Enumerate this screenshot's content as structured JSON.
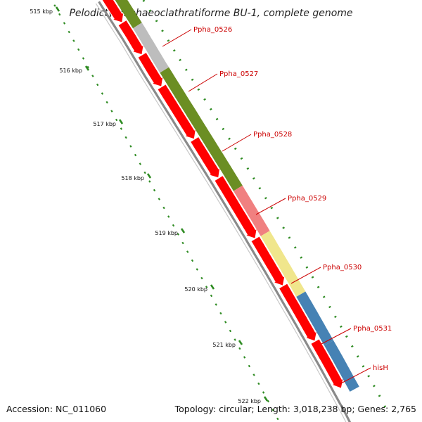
{
  "title": "Pelodictyon phaeoclathratiforme BU-1, complete genome",
  "kbp_ticks": [
    {
      "kbp": 515,
      "label": "515 kbp"
    },
    {
      "kbp": 516,
      "label": "516 kbp"
    },
    {
      "kbp": 517,
      "label": "517 kbp"
    },
    {
      "kbp": 518,
      "label": "518 kbp"
    },
    {
      "kbp": 519,
      "label": "519 kbp"
    },
    {
      "kbp": 520,
      "label": "520 kbp"
    },
    {
      "kbp": 521,
      "label": "521 kbp"
    },
    {
      "kbp": 522,
      "label": "522 kbp"
    }
  ],
  "genes": [
    {
      "label": "Ppha_0526",
      "color": "#bdbdbd"
    },
    {
      "label": "Ppha_0527",
      "color": "#6b8e23"
    },
    {
      "label": "Ppha_0528",
      "color": "#6b8e23"
    },
    {
      "label": "Ppha_0529",
      "color": "#f08080"
    },
    {
      "label": "Ppha_0530",
      "color": "#f0e68c"
    },
    {
      "label": "Ppha_0531",
      "color": "#4682b4"
    },
    {
      "label": "hisH",
      "color": "#4682b4"
    }
  ],
  "colors": {
    "cds_arrow": "#ff0000",
    "backbone": "#808080",
    "gc_skew": "#2e8b22",
    "label_color": "#cc0000"
  },
  "footer": {
    "accession": "Accession: NC_011060",
    "summary": "Topology: circular; Length: 3,018,238 bp; Genes: 2,765"
  }
}
